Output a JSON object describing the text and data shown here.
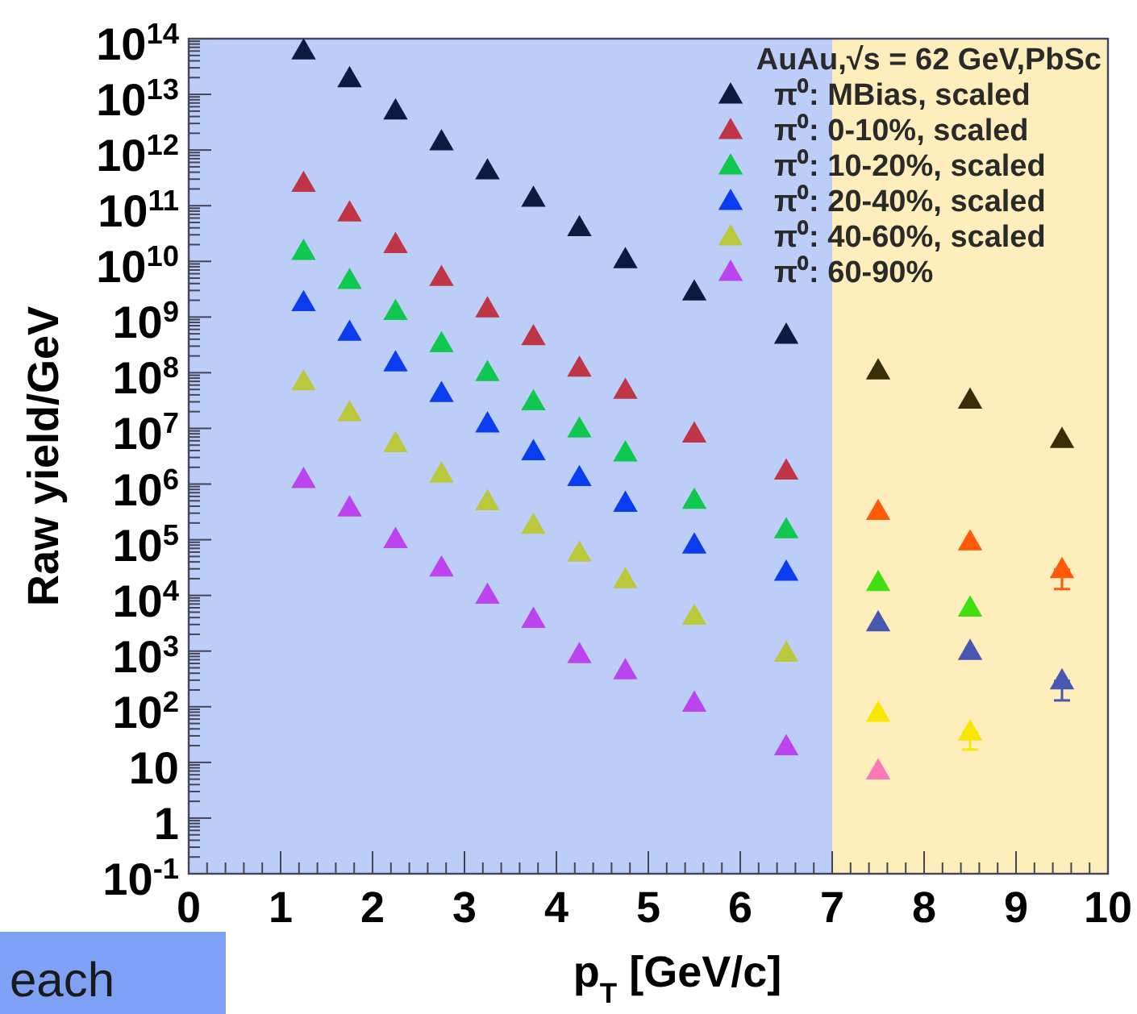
{
  "chart_data": {
    "type": "scatter",
    "xlabel": "p$_{T}$ [GeV/c]",
    "ylabel": "Raw yield/GeV",
    "legend_title": "AuAu,√s = 62 GeV,PbSc",
    "legend": "top right",
    "marker": "triangle",
    "log": "y",
    "x": [
      1.25,
      1.75,
      2.25,
      2.75,
      3.25,
      3.75,
      4.25,
      4.75,
      5.5,
      6.5,
      7.5,
      8.5,
      9.5
    ],
    "xlim": [
      0,
      10
    ],
    "xticks": [
      0,
      1,
      2,
      3,
      4,
      5,
      6,
      7,
      8,
      9,
      10
    ],
    "ylim": [
      0.1,
      100000000000000.0
    ],
    "yticks": [
      {
        "value": 0.1,
        "label": "10$^{-1}$"
      },
      1,
      10,
      {
        "value": 100,
        "label": "10$^{2}$"
      },
      {
        "value": 1000,
        "label": "10$^{3}$"
      },
      {
        "value": 10000,
        "label": "10$^{4}$"
      },
      {
        "value": 100000,
        "label": "10$^{5}$"
      },
      {
        "value": 1000000,
        "label": "10$^{6}$"
      },
      {
        "value": 10000000,
        "label": "10$^{7}$"
      },
      {
        "value": 100000000,
        "label": "10$^{8}$"
      },
      {
        "value": 1000000000,
        "label": "10$^{9}$"
      },
      {
        "value": 10000000000,
        "label": "10$^{10}$"
      },
      {
        "value": 100000000000,
        "label": "10$^{11}$"
      },
      {
        "value": 1000000000000,
        "label": "10$^{12}$"
      },
      {
        "value": 10000000000000,
        "label": "10$^{13}$"
      },
      {
        "value": 100000000000000,
        "label": "10$^{14}$"
      }
    ],
    "bands": [
      {
        "axis": "x",
        "from": 0,
        "to": 7,
        "color": "#bccdf8"
      },
      {
        "axis": "x",
        "from": 7,
        "to": 10,
        "color": "#fdeebb"
      }
    ],
    "annotations": [
      "each"
    ],
    "series": [
      {
        "name": "π⁰: MBias, scaled",
        "color": "#0d1a40",
        "colors": [
          "#0d1a40",
          "#0d1a40",
          "#0d1a40",
          "#0d1a40",
          "#0d1a40",
          "#0d1a40",
          "#0d1a40",
          "#0d1a40",
          "#0d1a40",
          "#0d1a40",
          "#3a2d0a",
          "#3a2d0a",
          "#3a2d0a"
        ],
        "values": [
          60000000000000.0,
          19000000000000.0,
          5000000000000.0,
          1400000000000.0,
          420000000000.0,
          135000000000.0,
          40000000000.0,
          10700000000.0,
          2800000000.0,
          470000000.0,
          107000000.0,
          32000000.0,
          6300000.0
        ]
      },
      {
        "name": "π⁰: 0-10%, scaled",
        "color": "#c03545",
        "colors": [
          "#c03545",
          "#c03545",
          "#c03545",
          "#c03545",
          "#c03545",
          "#c03545",
          "#c03545",
          "#c03545",
          "#c03545",
          "#c03545",
          "#ff5a0a",
          "#ff5a0a",
          "#ff5a0a"
        ],
        "values": [
          250000000000.0,
          74000000000.0,
          20000000000.0,
          5100000000.0,
          1400000000.0,
          440000000.0,
          120000000.0,
          48000000.0,
          7900000.0,
          1700000.0,
          320000.0,
          91000.0,
          29000.0
        ],
        "errors": [
          null,
          null,
          null,
          null,
          null,
          null,
          null,
          null,
          null,
          null,
          null,
          null,
          [
            13000.0,
            29000.0
          ]
        ]
      },
      {
        "name": "π⁰: 10-20%, scaled",
        "color": "#10c850",
        "colors": [
          "#10c850",
          "#10c850",
          "#10c850",
          "#10c850",
          "#10c850",
          "#10c850",
          "#10c850",
          "#10c850",
          "#10c850",
          "#10c850",
          "#40e010",
          "#40e010",
          null
        ],
        "values": [
          15000000000.0,
          4500000000.0,
          1250000000.0,
          330000000.0,
          100000000.0,
          30000000.0,
          9700000.0,
          3600000.0,
          510000.0,
          150000.0,
          17000.0,
          5900.0,
          null
        ]
      },
      {
        "name": "π⁰: 20-40%, scaled",
        "color": "#0a3cf0",
        "colors": [
          "#0a3cf0",
          "#0a3cf0",
          "#0a3cf0",
          "#0a3cf0",
          "#0a3cf0",
          "#0a3cf0",
          "#0a3cf0",
          "#0a3cf0",
          "#0a3cf0",
          "#0a3cf0",
          "#4858b0",
          "#4858b0",
          "#4858b0"
        ],
        "values": [
          1800000000.0,
          530000000.0,
          150000000.0,
          42000000.0,
          12000000.0,
          3800000.0,
          1300000.0,
          450000.0,
          80000.0,
          26000.0,
          3200.0,
          980,
          290
        ],
        "errors": [
          null,
          null,
          null,
          null,
          null,
          null,
          null,
          null,
          null,
          null,
          null,
          null,
          [
            130,
            290
          ]
        ]
      },
      {
        "name": "π⁰: 40-60%, scaled",
        "color": "#bcc83c",
        "colors": [
          "#bcc83c",
          "#bcc83c",
          "#bcc83c",
          "#bcc83c",
          "#bcc83c",
          "#bcc83c",
          "#bcc83c",
          "#bcc83c",
          "#bcc83c",
          "#bcc83c",
          "#f8e800",
          "#f8e800",
          null
        ],
        "values": [
          68000000.0,
          19000000.0,
          5300000.0,
          1500000.0,
          480000.0,
          180000.0,
          57000.0,
          19000.0,
          4200.0,
          910,
          76,
          35,
          null
        ],
        "errors": [
          null,
          null,
          null,
          null,
          null,
          null,
          null,
          null,
          null,
          null,
          null,
          [
            17,
            35
          ],
          null
        ]
      },
      {
        "name": "π⁰: 60-90%",
        "color": "#bb44f0",
        "colors": [
          "#bb44f0",
          "#bb44f0",
          "#bb44f0",
          "#bb44f0",
          "#bb44f0",
          "#bb44f0",
          "#bb44f0",
          "#bb44f0",
          "#bb44f0",
          "#bb44f0",
          "#f878b8",
          null,
          null
        ],
        "values": [
          1200000.0,
          370000.0,
          100000.0,
          31000.0,
          10000.0,
          3700.0,
          860,
          440,
          115,
          19,
          7,
          null,
          null
        ]
      }
    ]
  }
}
